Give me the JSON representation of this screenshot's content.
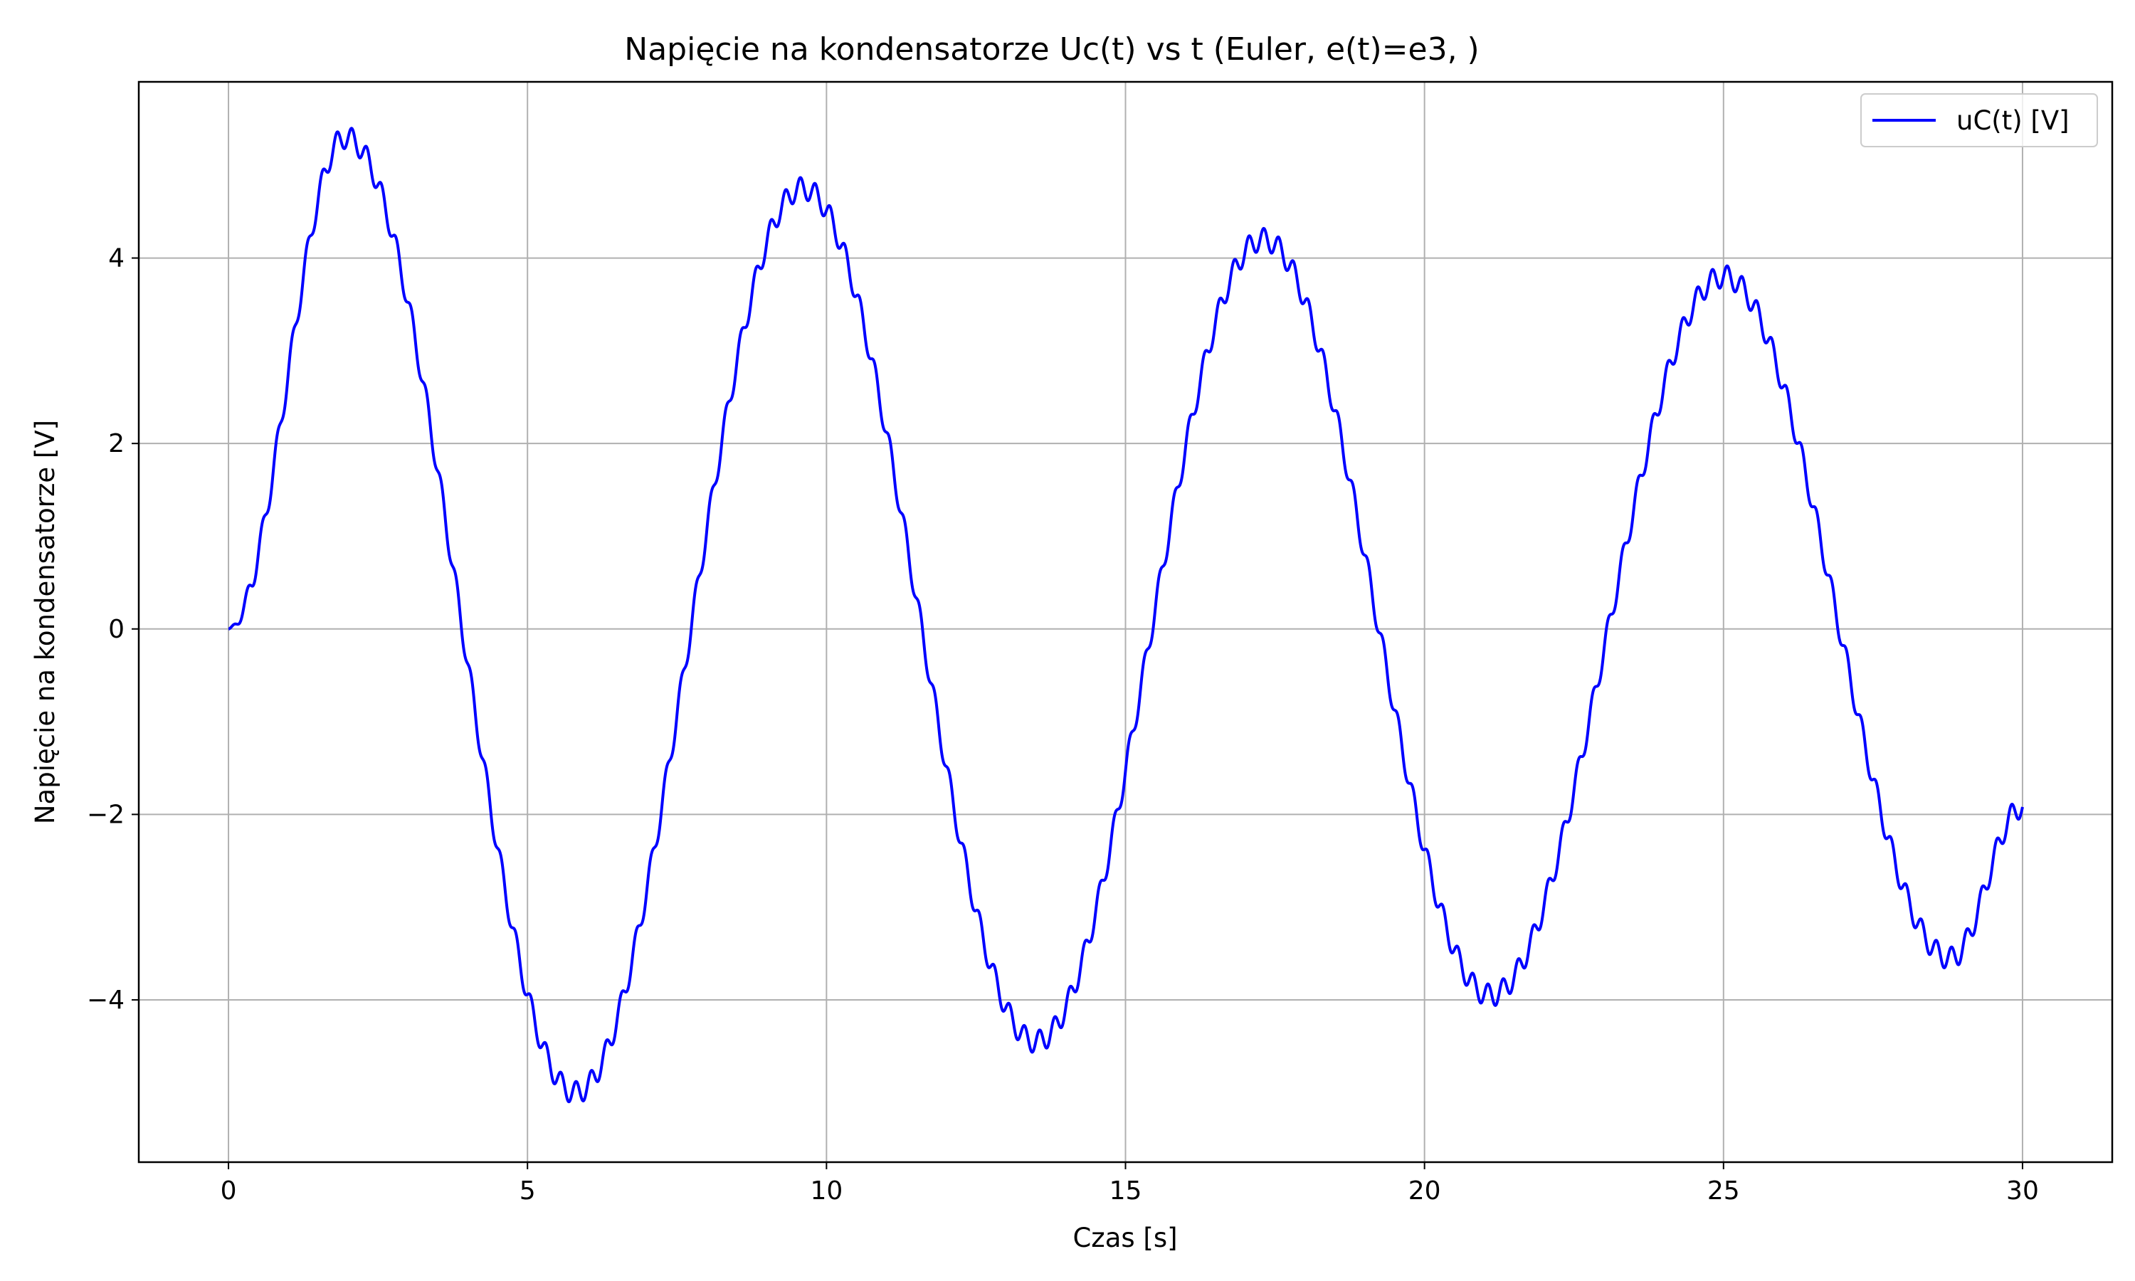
{
  "chart_data": {
    "type": "line",
    "title": "Napięcie na kondensatorze Uc(t) vs t (Euler, e(t)=e3, )",
    "xlabel": "Czas [s]",
    "ylabel": "Napięcie na kondensatorze [V]",
    "xlim": [
      -1.5,
      31.5
    ],
    "ylim": [
      -5.75,
      5.9
    ],
    "x_ticks": [
      0,
      5,
      10,
      15,
      20,
      25,
      30
    ],
    "x_tick_labels": [
      "0",
      "5",
      "10",
      "15",
      "20",
      "25",
      "30"
    ],
    "y_ticks": [
      -4,
      -2,
      0,
      2,
      4
    ],
    "y_tick_labels": [
      "−4",
      "−2",
      "0",
      "2",
      "4"
    ],
    "grid": true,
    "legend_position": "top-right",
    "series": [
      {
        "name": "uC(t) [V]",
        "color": "#0000ff",
        "x": [
          0,
          1.95,
          5.8,
          9.6,
          13.5,
          17.3,
          21.1,
          25.0,
          28.8,
          30.0
        ],
        "y": [
          0,
          5.3,
          -5.0,
          4.75,
          -4.45,
          4.2,
          -3.95,
          3.8,
          -3.55,
          -1.92
        ],
        "ripple_amplitude": 0.12,
        "ripple_period": 0.25
      }
    ]
  }
}
